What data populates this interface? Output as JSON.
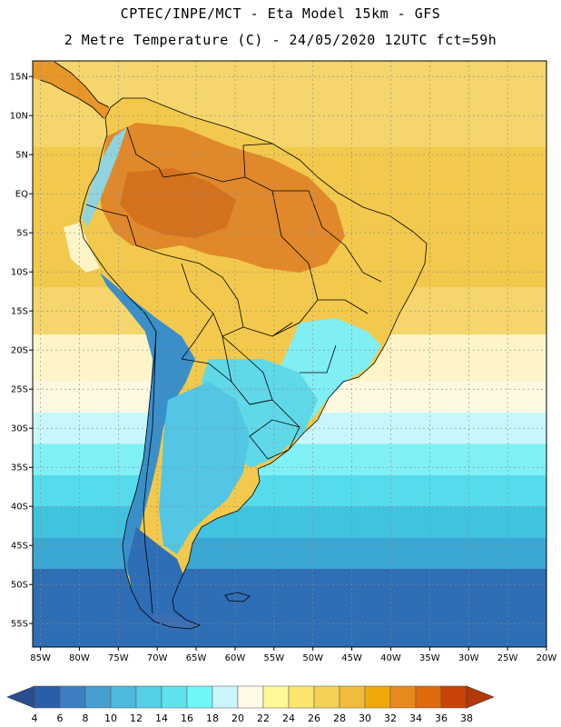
{
  "header": {
    "line1": "CPTEC/INPE/MCT -  Eta Model 15km - GFS",
    "line2": "2 Metre Temperature (C) - 24/05/2020 12UTC fct=59h"
  },
  "map": {
    "lon_range": [
      -86,
      -20
    ],
    "lat_range": [
      -58,
      17
    ],
    "lat_ticks": [
      {
        "value": 15,
        "label": "15N"
      },
      {
        "value": 10,
        "label": "10N"
      },
      {
        "value": 5,
        "label": "5N"
      },
      {
        "value": 0,
        "label": "EQ"
      },
      {
        "value": -5,
        "label": "5S"
      },
      {
        "value": -10,
        "label": "10S"
      },
      {
        "value": -15,
        "label": "15S"
      },
      {
        "value": -20,
        "label": "20S"
      },
      {
        "value": -25,
        "label": "25S"
      },
      {
        "value": -30,
        "label": "30S"
      },
      {
        "value": -35,
        "label": "35S"
      },
      {
        "value": -40,
        "label": "40S"
      },
      {
        "value": -45,
        "label": "45S"
      },
      {
        "value": -50,
        "label": "50S"
      },
      {
        "value": -55,
        "label": "55S"
      }
    ],
    "lon_ticks": [
      {
        "value": -85,
        "label": "85W"
      },
      {
        "value": -80,
        "label": "80W"
      },
      {
        "value": -75,
        "label": "75W"
      },
      {
        "value": -70,
        "label": "70W"
      },
      {
        "value": -65,
        "label": "65W"
      },
      {
        "value": -60,
        "label": "60W"
      },
      {
        "value": -55,
        "label": "55W"
      },
      {
        "value": -50,
        "label": "50W"
      },
      {
        "value": -45,
        "label": "45W"
      },
      {
        "value": -40,
        "label": "40W"
      },
      {
        "value": -35,
        "label": "35W"
      },
      {
        "value": -30,
        "label": "30W"
      },
      {
        "value": -25,
        "label": "25W"
      },
      {
        "value": -20,
        "label": "20W"
      }
    ],
    "ocean_bands": [
      {
        "lat_top": 17,
        "lat_bottom": 6,
        "color": "#f5d56c"
      },
      {
        "lat_top": 6,
        "lat_bottom": -12,
        "color": "#f2c94c"
      },
      {
        "lat_top": -12,
        "lat_bottom": -18,
        "color": "#f5d56c"
      },
      {
        "lat_top": -18,
        "lat_bottom": -24,
        "color": "#fdf5c8"
      },
      {
        "lat_top": -24,
        "lat_bottom": -28,
        "color": "#fff8e0"
      },
      {
        "lat_top": -28,
        "lat_bottom": -32,
        "color": "#c8f7fb"
      },
      {
        "lat_top": -32,
        "lat_bottom": -36,
        "color": "#7ff0f5"
      },
      {
        "lat_top": -36,
        "lat_bottom": -40,
        "color": "#55dcec"
      },
      {
        "lat_top": -40,
        "lat_bottom": -44,
        "color": "#3fc3e0"
      },
      {
        "lat_top": -44,
        "lat_bottom": -48,
        "color": "#3aa8d4"
      },
      {
        "lat_top": -48,
        "lat_bottom": -58,
        "color": "#2e6eb5"
      }
    ]
  },
  "colorbar": {
    "colors": [
      "#2b5ea8",
      "#3c7fc0",
      "#45a0cf",
      "#4cb9dd",
      "#55cfe6",
      "#5fe2ee",
      "#6ff7f8",
      "#c9f6fb",
      "#fffbe6",
      "#fff899",
      "#fbe56e",
      "#f4d155",
      "#f0bd3a",
      "#f0a80a",
      "#e8891d",
      "#df6a0c",
      "#c94305"
    ],
    "low_color": "#2a4e8e",
    "high_color": "#b4390a",
    "labels": [
      "4",
      "6",
      "8",
      "10",
      "12",
      "14",
      "16",
      "18",
      "20",
      "22",
      "24",
      "26",
      "28",
      "30",
      "32",
      "34",
      "36",
      "38"
    ]
  },
  "icons": {
    "low_arrow": "left-triangle-icon",
    "high_arrow": "right-triangle-icon"
  }
}
